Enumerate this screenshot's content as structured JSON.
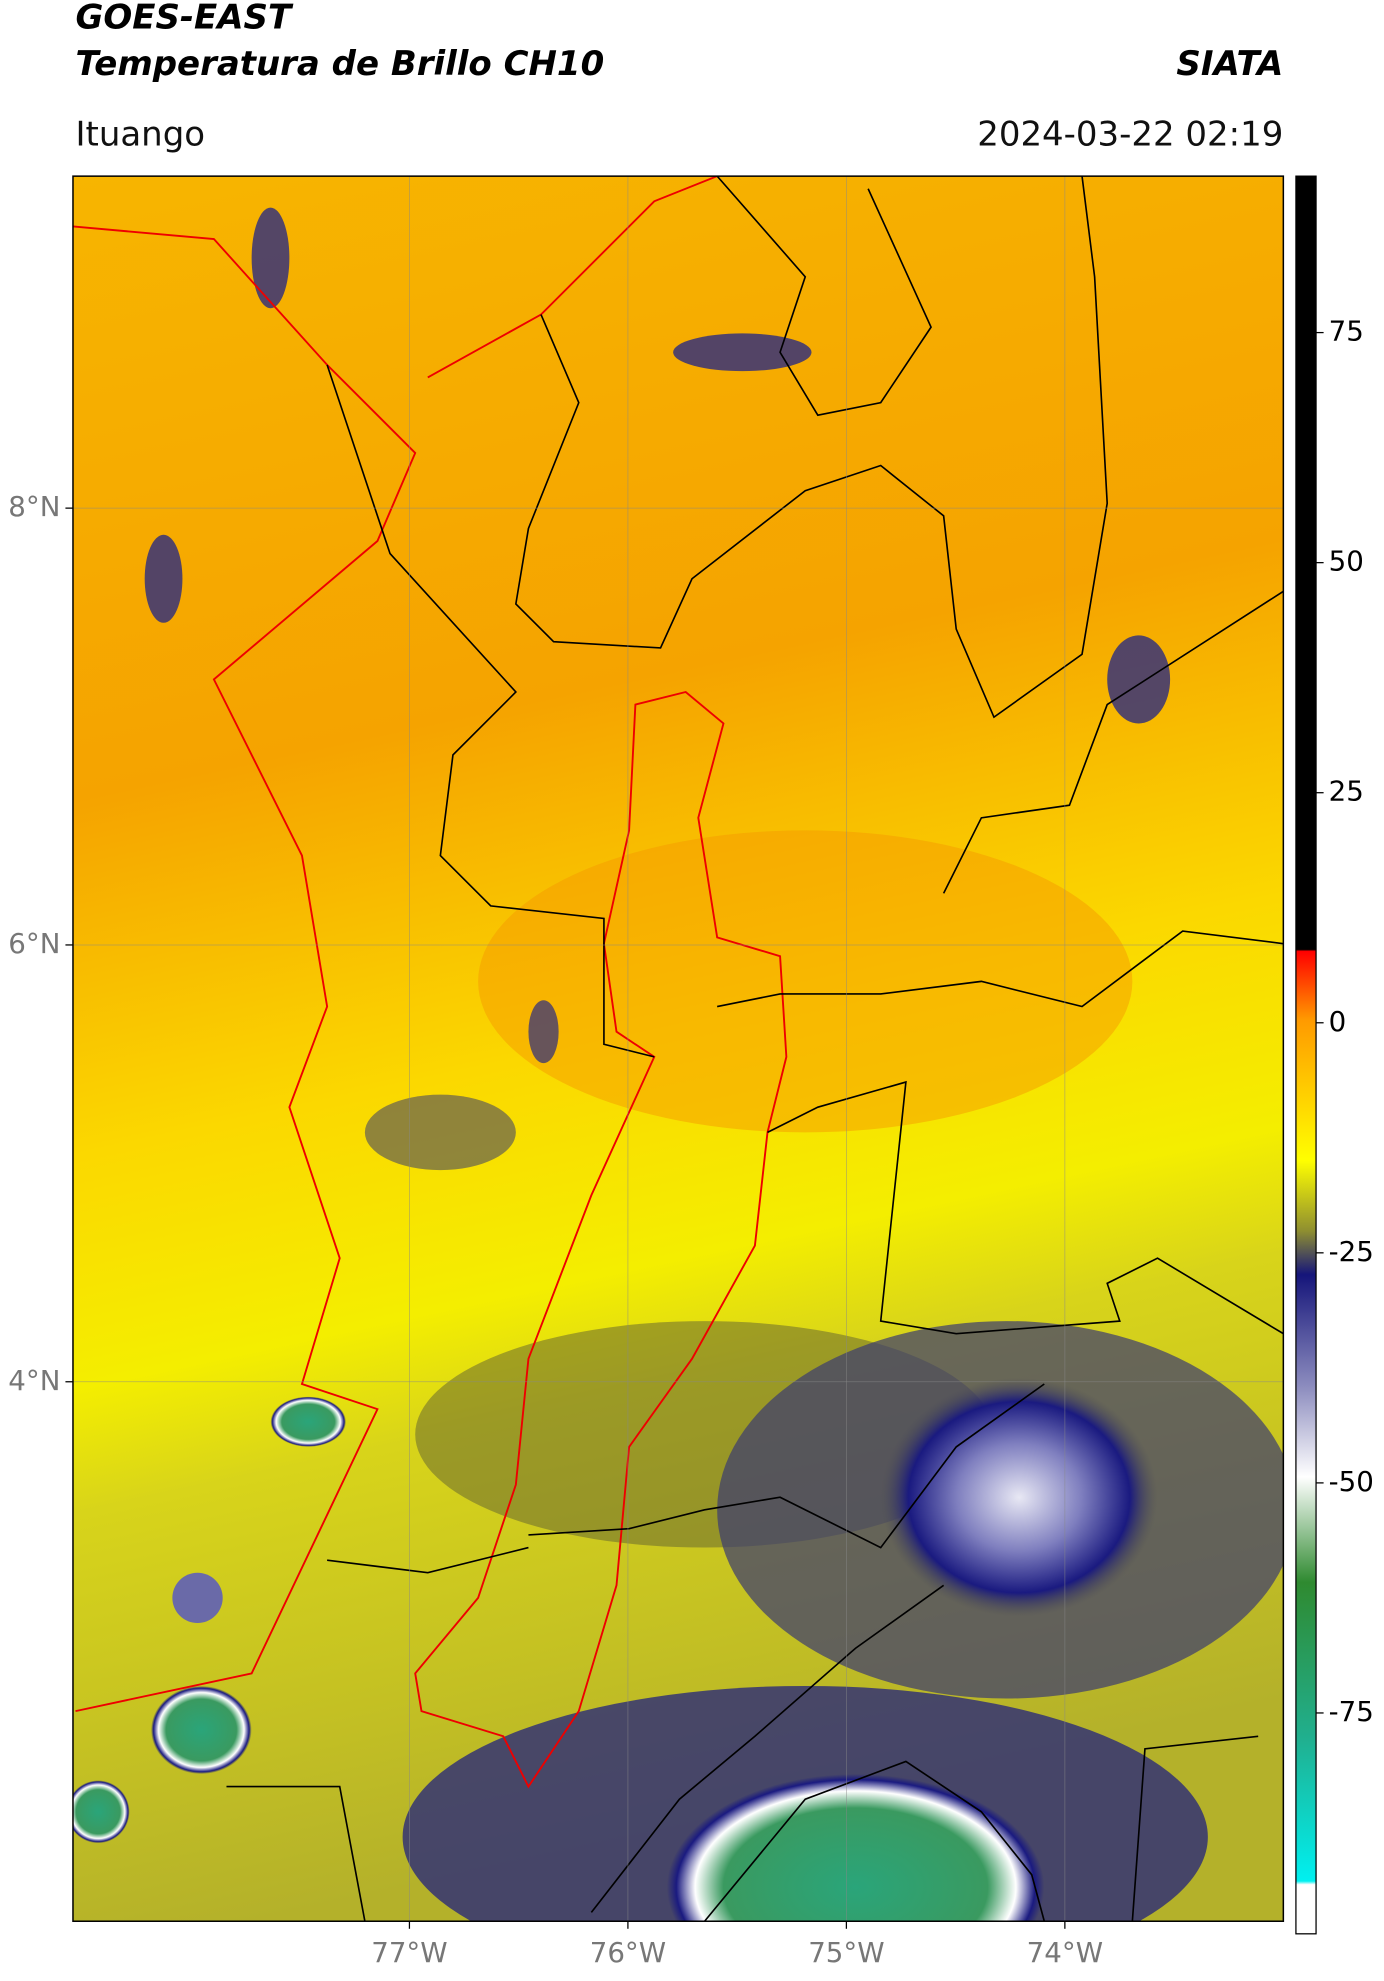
{
  "map": {
    "title": "GOES-EAST",
    "subtitle": "Temperatura de Brillo CH10",
    "source": "SIATA",
    "location": "Ituango",
    "datetime": "2024-03-22 02:19",
    "xlim": [
      -78.54,
      -73.0
    ],
    "ylim": [
      1.53,
      9.52
    ],
    "xticks": [
      {
        "value": -77,
        "label": "77°W"
      },
      {
        "value": -76,
        "label": "76°W"
      },
      {
        "value": -75,
        "label": "75°W"
      },
      {
        "value": -74,
        "label": "74°W"
      }
    ],
    "yticks": [
      {
        "value": 8,
        "label": "8°N"
      },
      {
        "value": 6,
        "label": "6°N"
      },
      {
        "value": 4,
        "label": "4°N"
      }
    ],
    "grid": true,
    "colorbar": {
      "lim": [
        -99,
        92
      ],
      "ticks": [
        75,
        50,
        25,
        0,
        -25,
        -50,
        -75
      ]
    }
  }
}
